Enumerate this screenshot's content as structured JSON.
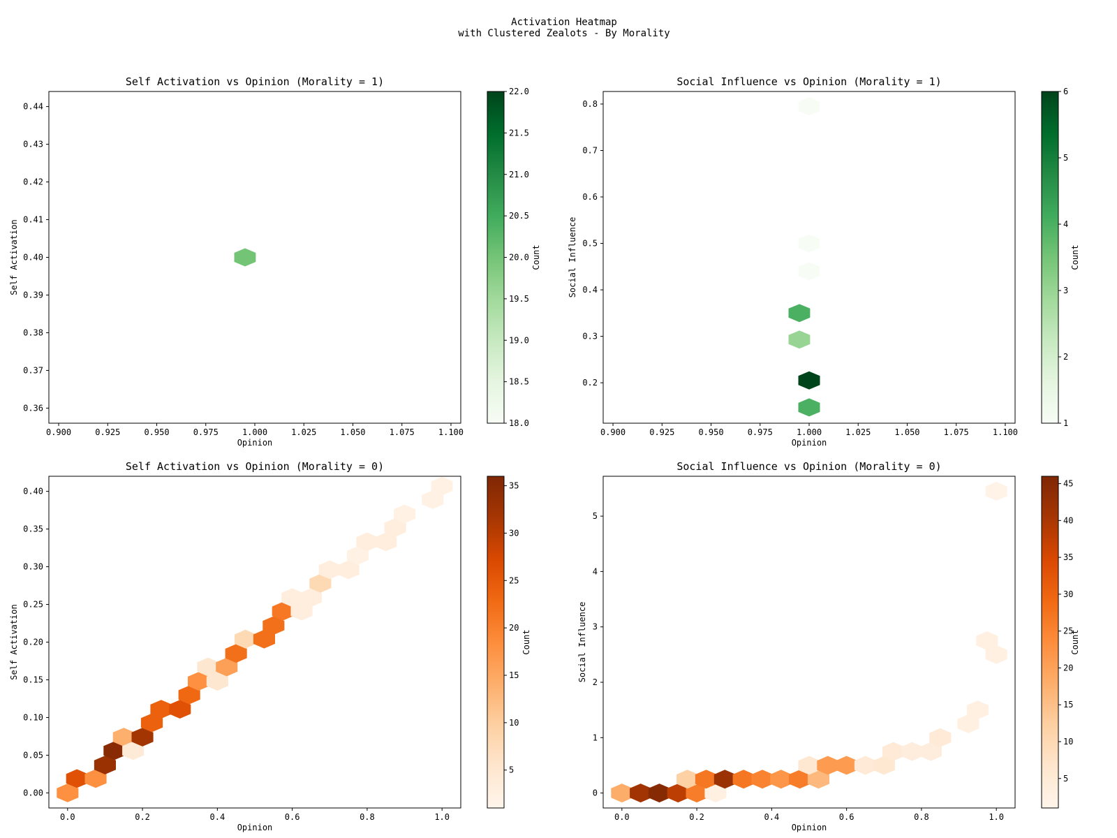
{
  "figure": {
    "title_line1": "Activation Heatmap",
    "title_line2": "with Clustered Zealots - By Morality"
  },
  "chart_data": [
    {
      "type": "heatmap",
      "title": "Self Activation vs Opinion (Morality = 1)",
      "xlabel": "Opinion",
      "ylabel": "Self Activation",
      "colorbar_label": "Count",
      "colormap": "Greens",
      "xlim": [
        0.895,
        1.105
      ],
      "ylim": [
        0.356,
        0.444
      ],
      "xticks": [
        0.9,
        0.925,
        0.95,
        0.975,
        1.0,
        1.025,
        1.05,
        1.075,
        1.1
      ],
      "xtick_labels": [
        "0.900",
        "0.925",
        "0.950",
        "0.975",
        "1.000",
        "1.025",
        "1.050",
        "1.075",
        "1.100"
      ],
      "yticks": [
        0.36,
        0.37,
        0.38,
        0.39,
        0.4,
        0.41,
        0.42,
        0.43,
        0.44
      ],
      "ytick_labels": [
        "0.36",
        "0.37",
        "0.38",
        "0.39",
        "0.40",
        "0.41",
        "0.42",
        "0.43",
        "0.44"
      ],
      "clim": [
        18,
        22
      ],
      "cticks": [
        18,
        18.5,
        19,
        19.5,
        20,
        20.5,
        21,
        21.5,
        22
      ],
      "ctick_labels": [
        "18.0",
        "18.5",
        "19.0",
        "19.5",
        "20.0",
        "20.5",
        "21.0",
        "21.5",
        "22.0"
      ],
      "hex_rx": 0.0055,
      "hex_ry": 0.0024,
      "points": [
        {
          "x": 0.995,
          "y": 0.4,
          "count": 20
        }
      ]
    },
    {
      "type": "heatmap",
      "title": "Social Influence vs Opinion (Morality = 1)",
      "xlabel": "Opinion",
      "ylabel": "Social Influence",
      "colorbar_label": "Count",
      "colormap": "Greens",
      "xlim": [
        0.895,
        1.105
      ],
      "ylim": [
        0.113,
        0.827
      ],
      "xticks": [
        0.9,
        0.925,
        0.95,
        0.975,
        1.0,
        1.025,
        1.05,
        1.075,
        1.1
      ],
      "xtick_labels": [
        "0.900",
        "0.925",
        "0.950",
        "0.975",
        "1.000",
        "1.025",
        "1.050",
        "1.075",
        "1.100"
      ],
      "yticks": [
        0.2,
        0.3,
        0.4,
        0.5,
        0.6,
        0.7,
        0.8
      ],
      "ytick_labels": [
        "0.2",
        "0.3",
        "0.4",
        "0.5",
        "0.6",
        "0.7",
        "0.8"
      ],
      "clim": [
        1,
        6
      ],
      "cticks": [
        1,
        2,
        3,
        4,
        5,
        6
      ],
      "ctick_labels": [
        "1",
        "2",
        "3",
        "4",
        "5",
        "6"
      ],
      "hex_rx": 0.0055,
      "hex_ry": 0.0195,
      "points": [
        {
          "x": 1.0,
          "y": 0.795,
          "count": 1
        },
        {
          "x": 1.0,
          "y": 0.5,
          "count": 1
        },
        {
          "x": 1.0,
          "y": 0.44,
          "count": 1
        },
        {
          "x": 0.995,
          "y": 0.35,
          "count": 4
        },
        {
          "x": 0.995,
          "y": 0.293,
          "count": 3
        },
        {
          "x": 1.0,
          "y": 0.205,
          "count": 6
        },
        {
          "x": 1.0,
          "y": 0.147,
          "count": 4
        }
      ]
    },
    {
      "type": "heatmap",
      "title": "Self Activation vs Opinion (Morality = 0)",
      "xlabel": "Opinion",
      "ylabel": "Self Activation",
      "colorbar_label": "Count",
      "colormap": "Oranges",
      "xlim": [
        -0.05,
        1.05
      ],
      "ylim": [
        -0.02,
        0.42
      ],
      "xticks": [
        0,
        0.2,
        0.4,
        0.6,
        0.8,
        1.0
      ],
      "xtick_labels": [
        "0.0",
        "0.2",
        "0.4",
        "0.6",
        "0.8",
        "1.0"
      ],
      "yticks": [
        0,
        0.05,
        0.1,
        0.15,
        0.2,
        0.25,
        0.3,
        0.35,
        0.4
      ],
      "ytick_labels": [
        "0.00",
        "0.05",
        "0.10",
        "0.15",
        "0.20",
        "0.25",
        "0.30",
        "0.35",
        "0.40"
      ],
      "clim": [
        1,
        36
      ],
      "cticks": [
        5,
        10,
        15,
        20,
        25,
        30,
        35
      ],
      "ctick_labels": [
        "5",
        "10",
        "15",
        "20",
        "25",
        "30",
        "35"
      ],
      "hex_rx": 0.029,
      "hex_ry": 0.0124,
      "points": [
        {
          "x": 0.0,
          "y": 0.0,
          "count": 18
        },
        {
          "x": 0.025,
          "y": 0.019,
          "count": 26
        },
        {
          "x": 0.075,
          "y": 0.019,
          "count": 18
        },
        {
          "x": 0.1,
          "y": 0.037,
          "count": 33
        },
        {
          "x": 0.125,
          "y": 0.056,
          "count": 35
        },
        {
          "x": 0.15,
          "y": 0.074,
          "count": 14
        },
        {
          "x": 0.175,
          "y": 0.056,
          "count": 4
        },
        {
          "x": 0.2,
          "y": 0.074,
          "count": 32
        },
        {
          "x": 0.225,
          "y": 0.093,
          "count": 24
        },
        {
          "x": 0.25,
          "y": 0.111,
          "count": 24
        },
        {
          "x": 0.3,
          "y": 0.111,
          "count": 26
        },
        {
          "x": 0.325,
          "y": 0.13,
          "count": 23
        },
        {
          "x": 0.35,
          "y": 0.148,
          "count": 18
        },
        {
          "x": 0.375,
          "y": 0.167,
          "count": 5
        },
        {
          "x": 0.4,
          "y": 0.148,
          "count": 5
        },
        {
          "x": 0.425,
          "y": 0.167,
          "count": 16
        },
        {
          "x": 0.45,
          "y": 0.185,
          "count": 22
        },
        {
          "x": 0.475,
          "y": 0.204,
          "count": 8
        },
        {
          "x": 0.525,
          "y": 0.204,
          "count": 22
        },
        {
          "x": 0.55,
          "y": 0.222,
          "count": 22
        },
        {
          "x": 0.575,
          "y": 0.241,
          "count": 21
        },
        {
          "x": 0.6,
          "y": 0.259,
          "count": 3
        },
        {
          "x": 0.625,
          "y": 0.241,
          "count": 3
        },
        {
          "x": 0.65,
          "y": 0.259,
          "count": 3
        },
        {
          "x": 0.675,
          "y": 0.278,
          "count": 8
        },
        {
          "x": 0.7,
          "y": 0.296,
          "count": 3
        },
        {
          "x": 0.75,
          "y": 0.296,
          "count": 3
        },
        {
          "x": 0.775,
          "y": 0.315,
          "count": 2
        },
        {
          "x": 0.8,
          "y": 0.333,
          "count": 3
        },
        {
          "x": 0.85,
          "y": 0.333,
          "count": 3
        },
        {
          "x": 0.875,
          "y": 0.352,
          "count": 3
        },
        {
          "x": 0.9,
          "y": 0.37,
          "count": 2
        },
        {
          "x": 0.975,
          "y": 0.389,
          "count": 2
        },
        {
          "x": 1.0,
          "y": 0.407,
          "count": 2
        }
      ]
    },
    {
      "type": "heatmap",
      "title": "Social Influence vs Opinion (Morality = 0)",
      "xlabel": "Opinion",
      "ylabel": "Social Influence",
      "colorbar_label": "Count",
      "colormap": "Oranges",
      "xlim": [
        -0.05,
        1.05
      ],
      "ylim": [
        -0.27,
        5.72
      ],
      "xticks": [
        0,
        0.2,
        0.4,
        0.6,
        0.8,
        1.0
      ],
      "xtick_labels": [
        "0.0",
        "0.2",
        "0.4",
        "0.6",
        "0.8",
        "1.0"
      ],
      "yticks": [
        0,
        1,
        2,
        3,
        4,
        5
      ],
      "ytick_labels": [
        "0",
        "1",
        "2",
        "3",
        "4",
        "5"
      ],
      "clim": [
        1,
        46
      ],
      "cticks": [
        5,
        10,
        15,
        20,
        25,
        30,
        35,
        40,
        45
      ],
      "ctick_labels": [
        "5",
        "10",
        "15",
        "20",
        "25",
        "30",
        "35",
        "40",
        "45"
      ],
      "hex_rx": 0.029,
      "hex_ry": 0.17,
      "points": [
        {
          "x": 0.0,
          "y": 0.0,
          "count": 18
        },
        {
          "x": 0.05,
          "y": 0.0,
          "count": 41
        },
        {
          "x": 0.1,
          "y": 0.0,
          "count": 45
        },
        {
          "x": 0.15,
          "y": 0.0,
          "count": 38
        },
        {
          "x": 0.2,
          "y": 0.0,
          "count": 26
        },
        {
          "x": 0.25,
          "y": 0.0,
          "count": 3
        },
        {
          "x": 0.175,
          "y": 0.25,
          "count": 12
        },
        {
          "x": 0.225,
          "y": 0.25,
          "count": 27
        },
        {
          "x": 0.275,
          "y": 0.25,
          "count": 42
        },
        {
          "x": 0.325,
          "y": 0.25,
          "count": 27
        },
        {
          "x": 0.375,
          "y": 0.25,
          "count": 25
        },
        {
          "x": 0.425,
          "y": 0.25,
          "count": 22
        },
        {
          "x": 0.475,
          "y": 0.25,
          "count": 26
        },
        {
          "x": 0.525,
          "y": 0.25,
          "count": 16
        },
        {
          "x": 0.5,
          "y": 0.5,
          "count": 6
        },
        {
          "x": 0.55,
          "y": 0.5,
          "count": 21
        },
        {
          "x": 0.6,
          "y": 0.5,
          "count": 21
        },
        {
          "x": 0.65,
          "y": 0.5,
          "count": 5
        },
        {
          "x": 0.7,
          "y": 0.5,
          "count": 6
        },
        {
          "x": 0.725,
          "y": 0.75,
          "count": 5
        },
        {
          "x": 0.775,
          "y": 0.75,
          "count": 4
        },
        {
          "x": 0.825,
          "y": 0.75,
          "count": 4
        },
        {
          "x": 0.85,
          "y": 1.0,
          "count": 5
        },
        {
          "x": 0.925,
          "y": 1.25,
          "count": 3
        },
        {
          "x": 0.95,
          "y": 1.5,
          "count": 3
        },
        {
          "x": 0.975,
          "y": 2.75,
          "count": 3
        },
        {
          "x": 1.0,
          "y": 2.5,
          "count": 3
        },
        {
          "x": 1.0,
          "y": 5.45,
          "count": 2
        }
      ]
    }
  ]
}
